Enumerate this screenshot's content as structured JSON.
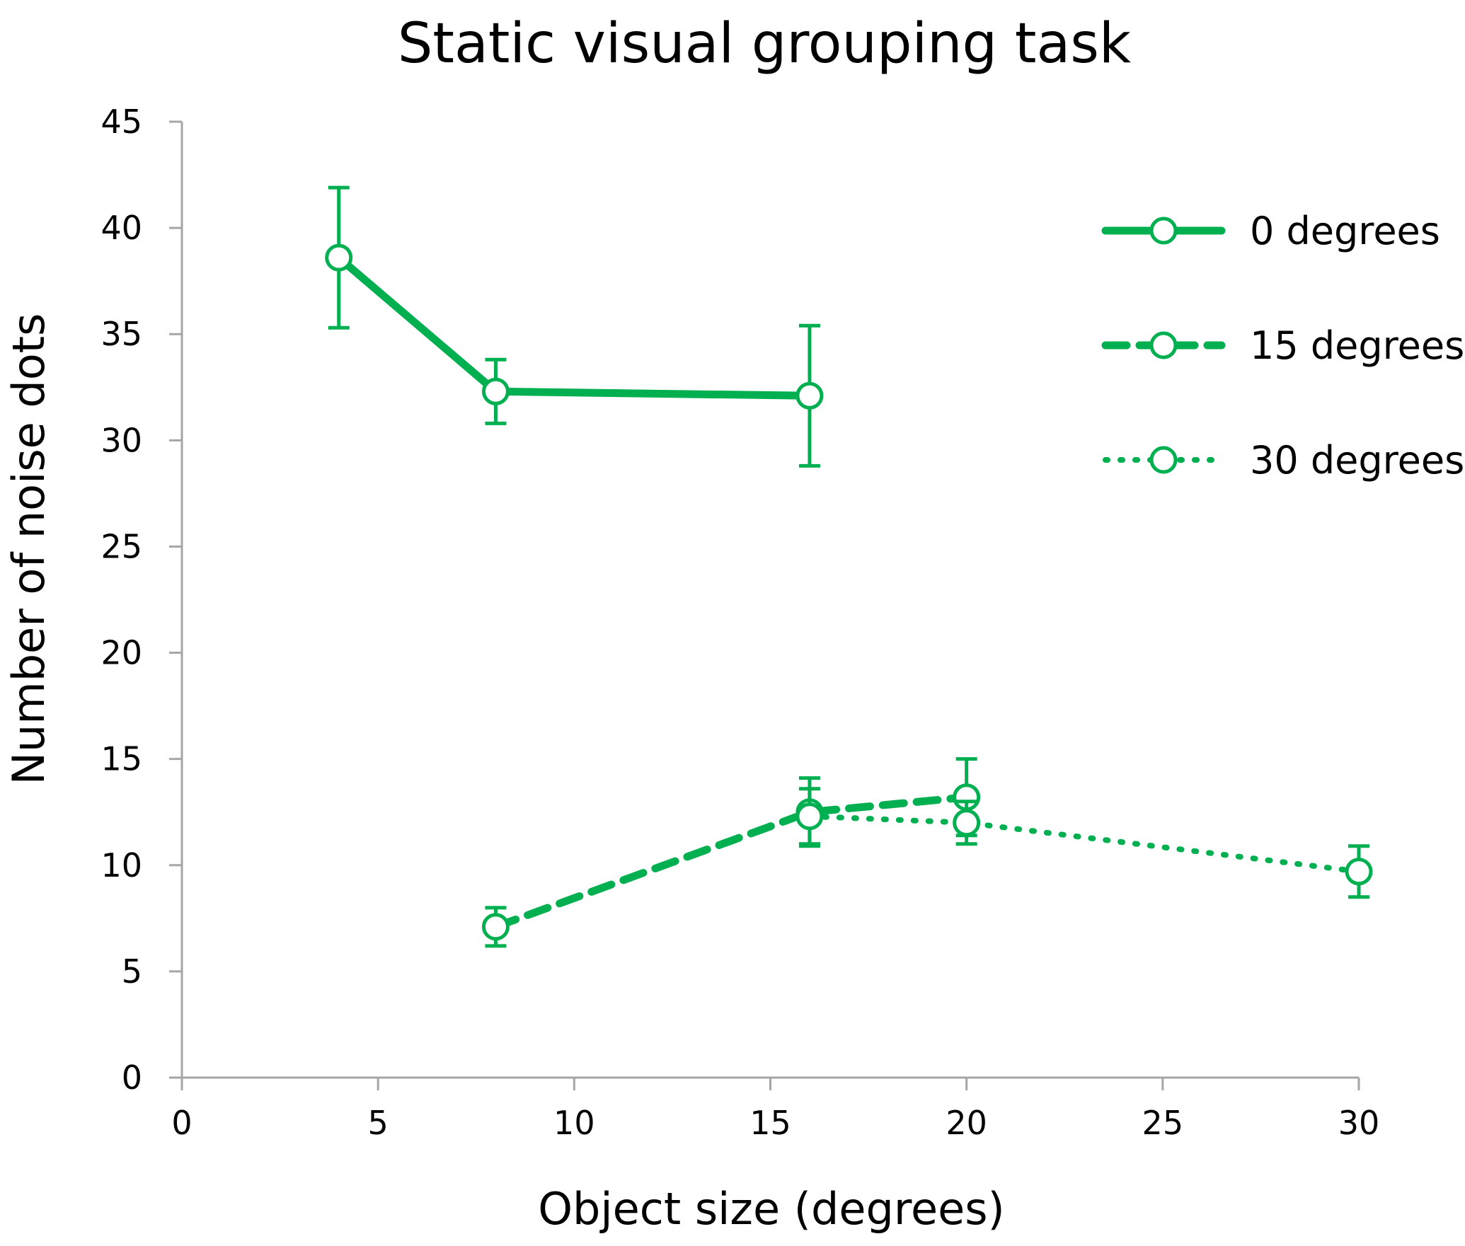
{
  "chart_data": {
    "type": "line",
    "title": "Static visual grouping task",
    "xlabel": "Object size (degrees)",
    "ylabel": "Number of noise dots",
    "xlim": [
      0,
      30
    ],
    "ylim": [
      0,
      45
    ],
    "xticks": [
      "0",
      "5",
      "10",
      "15",
      "20",
      "25",
      "30"
    ],
    "yticks": [
      "0",
      "5",
      "10",
      "15",
      "20",
      "25",
      "30",
      "35",
      "40",
      "45"
    ],
    "grid": false,
    "legend_position": "right",
    "color": "#00b050",
    "series": [
      {
        "name": "0 degrees",
        "line_style": "solid",
        "x": [
          4,
          8,
          16
        ],
        "y": [
          38.6,
          32.3,
          32.1
        ],
        "error": [
          3.3,
          1.5,
          3.3
        ]
      },
      {
        "name": "15 degrees",
        "line_style": "dashed",
        "x": [
          8,
          16,
          20
        ],
        "y": [
          7.1,
          12.5,
          13.2
        ],
        "error": [
          0.9,
          1.6,
          1.8
        ]
      },
      {
        "name": "30 degrees",
        "line_style": "dotted",
        "x": [
          16,
          20,
          30
        ],
        "y": [
          12.3,
          12.0,
          9.7
        ],
        "error": [
          1.3,
          1.0,
          1.2
        ]
      }
    ]
  }
}
